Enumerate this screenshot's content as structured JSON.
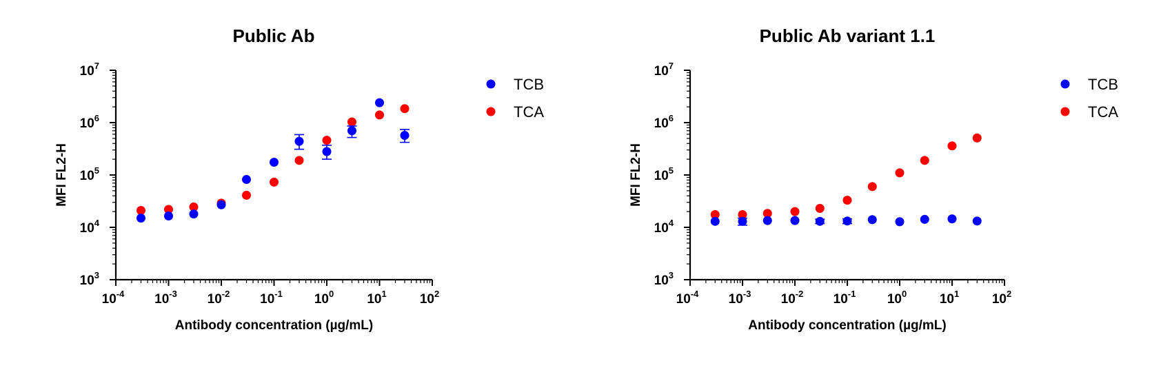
{
  "chart_data": [
    {
      "type": "scatter",
      "title": "Public Ab",
      "xlabel": "Antibody concentration (µg/mL)",
      "ylabel": "MFI FL2-H",
      "x_scale": "log",
      "y_scale": "log",
      "xlim": [
        0.0001,
        100
      ],
      "ylim": [
        1000,
        10000000
      ],
      "x_ticks": [
        {
          "value": 0.0001,
          "base": "10",
          "exp": "-4"
        },
        {
          "value": 0.001,
          "base": "10",
          "exp": "-3"
        },
        {
          "value": 0.01,
          "base": "10",
          "exp": "-2"
        },
        {
          "value": 0.1,
          "base": "10",
          "exp": "-1"
        },
        {
          "value": 1,
          "base": "10",
          "exp": "0"
        },
        {
          "value": 10,
          "base": "10",
          "exp": "1"
        },
        {
          "value": 100,
          "base": "10",
          "exp": "2"
        }
      ],
      "y_ticks": [
        {
          "value": 1000,
          "base": "10",
          "exp": "3"
        },
        {
          "value": 10000,
          "base": "10",
          "exp": "4"
        },
        {
          "value": 100000,
          "base": "10",
          "exp": "5"
        },
        {
          "value": 1000000,
          "base": "10",
          "exp": "6"
        },
        {
          "value": 10000000,
          "base": "10",
          "exp": "7"
        }
      ],
      "legend": "right",
      "grid": false,
      "series": [
        {
          "name": "TCB",
          "color": "#0000ff",
          "points": [
            {
              "x": 0.0003,
              "y": 15000
            },
            {
              "x": 0.001,
              "y": 16500
            },
            {
              "x": 0.003,
              "y": 18000
            },
            {
              "x": 0.01,
              "y": 27000
            },
            {
              "x": 0.03,
              "y": 82000
            },
            {
              "x": 0.1,
              "y": 175000
            },
            {
              "x": 0.3,
              "y": 440000,
              "err_low": 310000,
              "err_high": 590000
            },
            {
              "x": 1,
              "y": 280000,
              "err_low": 200000,
              "err_high": 370000
            },
            {
              "x": 3,
              "y": 700000,
              "err_low": 520000,
              "err_high": 860000
            },
            {
              "x": 10,
              "y": 2400000
            },
            {
              "x": 30,
              "y": 570000,
              "err_low": 420000,
              "err_high": 740000
            }
          ]
        },
        {
          "name": "TCA",
          "color": "#ff0000",
          "points": [
            {
              "x": 0.0003,
              "y": 21000
            },
            {
              "x": 0.001,
              "y": 22000
            },
            {
              "x": 0.003,
              "y": 24500
            },
            {
              "x": 0.01,
              "y": 29000
            },
            {
              "x": 0.03,
              "y": 41000
            },
            {
              "x": 0.1,
              "y": 73000
            },
            {
              "x": 0.3,
              "y": 190000
            },
            {
              "x": 1,
              "y": 460000
            },
            {
              "x": 3,
              "y": 1030000
            },
            {
              "x": 10,
              "y": 1400000
            },
            {
              "x": 30,
              "y": 1850000
            }
          ]
        }
      ]
    },
    {
      "type": "scatter",
      "title": "Public Ab variant 1.1",
      "xlabel": "Antibody concentration (µg/mL)",
      "ylabel": "MFI FL2-H",
      "x_scale": "log",
      "y_scale": "log",
      "xlim": [
        0.0001,
        100
      ],
      "ylim": [
        1000,
        10000000
      ],
      "x_ticks": [
        {
          "value": 0.0001,
          "base": "10",
          "exp": "-4"
        },
        {
          "value": 0.001,
          "base": "10",
          "exp": "-3"
        },
        {
          "value": 0.01,
          "base": "10",
          "exp": "-2"
        },
        {
          "value": 0.1,
          "base": "10",
          "exp": "-1"
        },
        {
          "value": 1,
          "base": "10",
          "exp": "0"
        },
        {
          "value": 10,
          "base": "10",
          "exp": "1"
        },
        {
          "value": 100,
          "base": "10",
          "exp": "2"
        }
      ],
      "y_ticks": [
        {
          "value": 1000,
          "base": "10",
          "exp": "3"
        },
        {
          "value": 10000,
          "base": "10",
          "exp": "4"
        },
        {
          "value": 100000,
          "base": "10",
          "exp": "5"
        },
        {
          "value": 1000000,
          "base": "10",
          "exp": "6"
        },
        {
          "value": 10000000,
          "base": "10",
          "exp": "7"
        }
      ],
      "legend": "right",
      "grid": false,
      "series": [
        {
          "name": "TCB",
          "color": "#0000ff",
          "points": [
            {
              "x": 0.0003,
              "y": 13000
            },
            {
              "x": 0.001,
              "y": 13000,
              "err_low": 11000,
              "err_high": 15000
            },
            {
              "x": 0.003,
              "y": 13500
            },
            {
              "x": 0.01,
              "y": 13500
            },
            {
              "x": 0.03,
              "y": 13000,
              "err_low": 11800,
              "err_high": 14300
            },
            {
              "x": 0.1,
              "y": 13200,
              "err_low": 11800,
              "err_high": 14500
            },
            {
              "x": 0.3,
              "y": 14000
            },
            {
              "x": 1,
              "y": 12800
            },
            {
              "x": 3,
              "y": 14200
            },
            {
              "x": 10,
              "y": 14500
            },
            {
              "x": 30,
              "y": 13200
            }
          ]
        },
        {
          "name": "TCA",
          "color": "#ff0000",
          "points": [
            {
              "x": 0.0003,
              "y": 17500
            },
            {
              "x": 0.001,
              "y": 17500
            },
            {
              "x": 0.003,
              "y": 18500
            },
            {
              "x": 0.01,
              "y": 20000
            },
            {
              "x": 0.03,
              "y": 23000
            },
            {
              "x": 0.1,
              "y": 33000
            },
            {
              "x": 0.3,
              "y": 60000
            },
            {
              "x": 1,
              "y": 110000
            },
            {
              "x": 3,
              "y": 190000
            },
            {
              "x": 10,
              "y": 360000
            },
            {
              "x": 30,
              "y": 510000
            }
          ]
        }
      ]
    }
  ]
}
